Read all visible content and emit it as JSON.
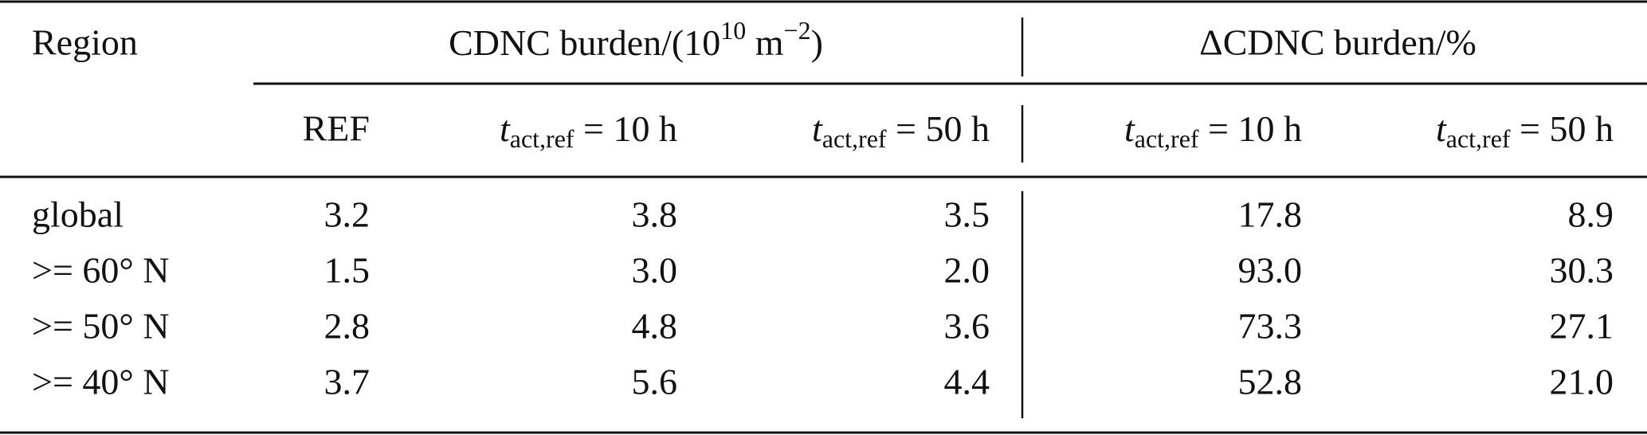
{
  "table": {
    "header": {
      "region": "Region",
      "groups": [
        [
          "CDNC burden/(10",
          "10",
          " m",
          "−2",
          ")"
        ],
        [
          "ΔCDNC burden/%"
        ]
      ],
      "columns": [
        [
          "REF"
        ],
        [
          "t",
          "act,ref",
          " = 10 h"
        ],
        [
          "t",
          "act,ref",
          " = 50 h"
        ],
        [
          "t",
          "act,ref",
          " = 10 h"
        ],
        [
          "t",
          "act,ref",
          " = 50 h"
        ]
      ]
    },
    "rows": [
      [
        "global",
        "3.2",
        "3.8",
        "3.5",
        "17.8",
        "8.9"
      ],
      [
        ">= 60° N",
        "1.5",
        "3.0",
        "2.0",
        "93.0",
        "30.3"
      ],
      [
        ">= 50° N",
        "2.8",
        "4.8",
        "3.6",
        "73.3",
        "27.1"
      ],
      [
        ">= 40° N",
        "3.7",
        "5.6",
        "4.4",
        "52.8",
        "21.0"
      ]
    ]
  }
}
